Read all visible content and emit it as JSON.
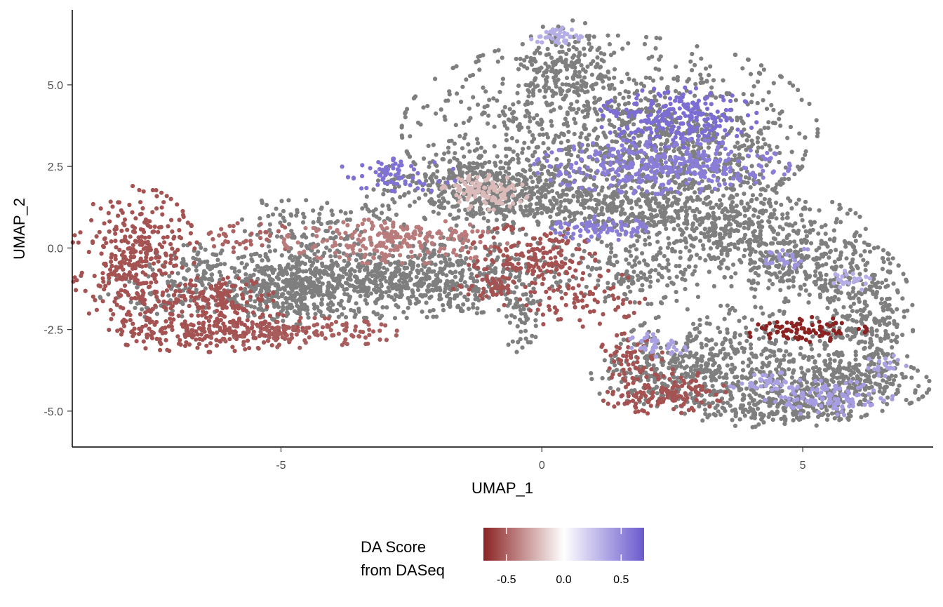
{
  "chart_data": {
    "type": "scatter",
    "title": "",
    "xlabel": "UMAP_1",
    "ylabel": "UMAP_2",
    "xlim": [
      -9.0,
      7.5
    ],
    "ylim": [
      -6.1,
      7.3
    ],
    "xticks": [
      -5,
      0,
      5
    ],
    "xtick_labels": [
      "-5",
      "0",
      "5"
    ],
    "yticks": [
      -5.0,
      -2.5,
      0.0,
      2.5,
      5.0
    ],
    "ytick_labels": [
      "-5.0",
      "-2.5",
      "0.0",
      "2.5",
      "5.0"
    ],
    "grid": false,
    "point_color_na": "#7f7f7f",
    "legend": {
      "title_line1": "DA Score",
      "title_line2": "from DASeq",
      "placement": "bottom",
      "range": [
        -0.7,
        0.7
      ],
      "breaks": [
        -0.5,
        0.0,
        0.5
      ],
      "break_labels": [
        "-0.5",
        "0.0",
        "0.5"
      ],
      "colors": {
        "low": "#8b2323",
        "mid": "#ffffff",
        "high": "#6a5acd"
      }
    },
    "gray_regions": [
      {
        "name": "upper-lobe",
        "cx": 1.3,
        "cy": 3.6,
        "rx": 2.6,
        "ry": 1.9,
        "n": 900
      },
      {
        "name": "top-peak",
        "cx": 0.5,
        "cy": 5.6,
        "rx": 0.6,
        "ry": 0.9,
        "n": 160
      },
      {
        "name": "upper-right",
        "cx": 2.8,
        "cy": 2.9,
        "rx": 1.3,
        "ry": 1.2,
        "n": 220
      },
      {
        "name": "central-band",
        "cx": 0.6,
        "cy": 1.4,
        "rx": 2.6,
        "ry": 0.9,
        "n": 650
      },
      {
        "name": "right-band",
        "cx": 3.6,
        "cy": 0.6,
        "rx": 1.7,
        "ry": 0.8,
        "n": 420
      },
      {
        "name": "far-right-band",
        "cx": 5.0,
        "cy": -0.6,
        "rx": 1.1,
        "ry": 0.7,
        "n": 260
      },
      {
        "name": "right-arc",
        "cx": 6.2,
        "cy": -2.2,
        "rx": 0.6,
        "ry": 1.5,
        "n": 300
      },
      {
        "name": "right-bottom",
        "cx": 5.6,
        "cy": -4.2,
        "rx": 1.2,
        "ry": 0.6,
        "n": 300
      },
      {
        "name": "lower-ring",
        "cx": 3.6,
        "cy": -3.3,
        "rx": 1.4,
        "ry": 1.0,
        "n": 380
      },
      {
        "name": "lower-left-ring",
        "cx": 2.3,
        "cy": -4.0,
        "rx": 0.9,
        "ry": 0.6,
        "n": 160
      },
      {
        "name": "bottom-ring",
        "cx": 4.5,
        "cy": -4.9,
        "rx": 1.2,
        "ry": 0.4,
        "n": 200
      },
      {
        "name": "mid-band",
        "cx": -3.0,
        "cy": -1.0,
        "rx": 2.3,
        "ry": 0.75,
        "n": 900
      },
      {
        "name": "mid-left",
        "cx": -5.0,
        "cy": -1.3,
        "rx": 0.8,
        "ry": 0.7,
        "n": 260
      },
      {
        "name": "left-upper-sparse",
        "cx": -4.4,
        "cy": 0.6,
        "rx": 0.9,
        "ry": 0.8,
        "n": 110
      },
      {
        "name": "arm-top",
        "cx": -1.3,
        "cy": 2.0,
        "rx": 1.2,
        "ry": 0.7,
        "n": 260
      },
      {
        "name": "stem",
        "cx": -0.4,
        "cy": -2.3,
        "rx": 0.2,
        "ry": 0.7,
        "n": 40
      },
      {
        "name": "left-gray-patch",
        "cx": -7.1,
        "cy": -1.4,
        "rx": 0.9,
        "ry": 0.5,
        "n": 90
      },
      {
        "name": "left-gray-mid",
        "cx": -6.6,
        "cy": -0.5,
        "rx": 0.6,
        "ry": 0.4,
        "n": 60
      },
      {
        "name": "right-gap-fill",
        "cx": 1.9,
        "cy": -0.8,
        "rx": 1.1,
        "ry": 0.6,
        "n": 140
      }
    ],
    "score_regions": [
      {
        "name": "left-cluster",
        "cx": -7.8,
        "cy": -0.4,
        "rx": 0.8,
        "ry": 1.5,
        "n": 360,
        "score": -0.55
      },
      {
        "name": "left-bottom-arc",
        "cx": -6.5,
        "cy": -2.5,
        "rx": 1.3,
        "ry": 0.45,
        "n": 260,
        "score": -0.55
      },
      {
        "name": "left-bottom-tail",
        "cx": -4.6,
        "cy": -2.6,
        "rx": 1.2,
        "ry": 0.3,
        "n": 120,
        "score": -0.52
      },
      {
        "name": "left-mid-arm",
        "cx": -6.2,
        "cy": -1.5,
        "rx": 0.7,
        "ry": 0.4,
        "n": 120,
        "score": -0.55
      },
      {
        "name": "left-upper-spots",
        "cx": -5.7,
        "cy": 0.3,
        "rx": 0.6,
        "ry": 0.4,
        "n": 40,
        "score": -0.5
      },
      {
        "name": "mid-band-light",
        "cx": -2.8,
        "cy": 0.2,
        "rx": 1.4,
        "ry": 0.45,
        "n": 220,
        "score": -0.42
      },
      {
        "name": "center-red",
        "cx": -0.2,
        "cy": -0.3,
        "rx": 0.8,
        "ry": 0.7,
        "n": 170,
        "score": -0.55
      },
      {
        "name": "center-red-scatter",
        "cx": 0.6,
        "cy": -1.5,
        "rx": 0.9,
        "ry": 0.6,
        "n": 80,
        "score": -0.55
      },
      {
        "name": "center-red-left",
        "cx": -1.1,
        "cy": -1.2,
        "rx": 0.4,
        "ry": 0.25,
        "n": 40,
        "score": -0.55
      },
      {
        "name": "lower-diag",
        "cx": 2.3,
        "cy": -4.4,
        "rx": 0.8,
        "ry": 0.45,
        "n": 150,
        "score": -0.55
      },
      {
        "name": "lower-diag-b",
        "cx": 1.7,
        "cy": -3.3,
        "rx": 0.4,
        "ry": 0.45,
        "n": 50,
        "score": -0.55
      },
      {
        "name": "dark-red-pair",
        "cx": 5.0,
        "cy": -2.5,
        "rx": 0.8,
        "ry": 0.25,
        "n": 80,
        "score": -0.75
      },
      {
        "name": "pink-patch",
        "cx": -1.1,
        "cy": 1.7,
        "rx": 0.55,
        "ry": 0.35,
        "n": 110,
        "score": -0.22
      },
      {
        "name": "top-purple",
        "cx": 0.3,
        "cy": 6.5,
        "rx": 0.35,
        "ry": 0.18,
        "n": 40,
        "score": 0.35
      },
      {
        "name": "upper-purple",
        "cx": 2.6,
        "cy": 4.0,
        "rx": 1.0,
        "ry": 0.6,
        "n": 240,
        "score": 0.62
      },
      {
        "name": "mid-purple",
        "cx": 2.3,
        "cy": 2.5,
        "rx": 1.6,
        "ry": 0.55,
        "n": 360,
        "score": 0.55
      },
      {
        "name": "purple-small",
        "cx": 1.1,
        "cy": 0.6,
        "rx": 0.6,
        "ry": 0.25,
        "n": 80,
        "score": 0.55
      },
      {
        "name": "arm-purple",
        "cx": -2.8,
        "cy": 2.2,
        "rx": 0.8,
        "ry": 0.35,
        "n": 70,
        "score": 0.6
      },
      {
        "name": "right-purple",
        "cx": 4.7,
        "cy": -0.3,
        "rx": 0.35,
        "ry": 0.25,
        "n": 25,
        "score": 0.45
      },
      {
        "name": "right-purple-b",
        "cx": 5.9,
        "cy": -1.0,
        "rx": 0.35,
        "ry": 0.2,
        "n": 25,
        "score": 0.35
      },
      {
        "name": "lower-purple",
        "cx": 2.2,
        "cy": -3.0,
        "rx": 0.4,
        "ry": 0.25,
        "n": 40,
        "score": 0.4
      },
      {
        "name": "lower-right-purple",
        "cx": 5.5,
        "cy": -4.6,
        "rx": 0.8,
        "ry": 0.35,
        "n": 120,
        "score": 0.42
      },
      {
        "name": "lower-right-purple-b",
        "cx": 4.3,
        "cy": -4.1,
        "rx": 0.5,
        "ry": 0.2,
        "n": 40,
        "score": 0.4
      },
      {
        "name": "right-edge-purple",
        "cx": 6.6,
        "cy": -3.6,
        "rx": 0.25,
        "ry": 0.25,
        "n": 20,
        "score": 0.4
      }
    ]
  }
}
